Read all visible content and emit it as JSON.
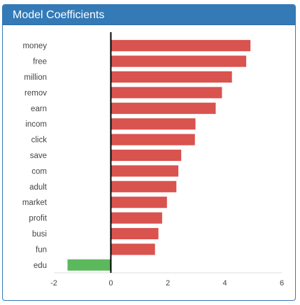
{
  "panel": {
    "title": "Model Coefficients"
  },
  "colors": {
    "panel_header": "#337ab7",
    "positive_bar": "#d9534f",
    "negative_bar": "#5cb85c",
    "zero_line": "#000000",
    "axis": "#dddddd"
  },
  "chart_data": {
    "type": "bar",
    "orientation": "horizontal",
    "title": "",
    "xlabel": "",
    "ylabel": "",
    "categories": [
      "money",
      "free",
      "million",
      "remov",
      "earn",
      "incom",
      "click",
      "save",
      "com",
      "adult",
      "market",
      "profit",
      "busi",
      "fun",
      "edu"
    ],
    "values": [
      4.9,
      4.75,
      4.25,
      3.9,
      3.68,
      2.97,
      2.95,
      2.47,
      2.37,
      2.3,
      1.97,
      1.8,
      1.67,
      1.55,
      -1.52
    ],
    "xlim": [
      -2,
      6
    ],
    "xticks": [
      -2,
      0,
      2,
      4,
      6
    ],
    "grid": false,
    "legend": "none"
  }
}
